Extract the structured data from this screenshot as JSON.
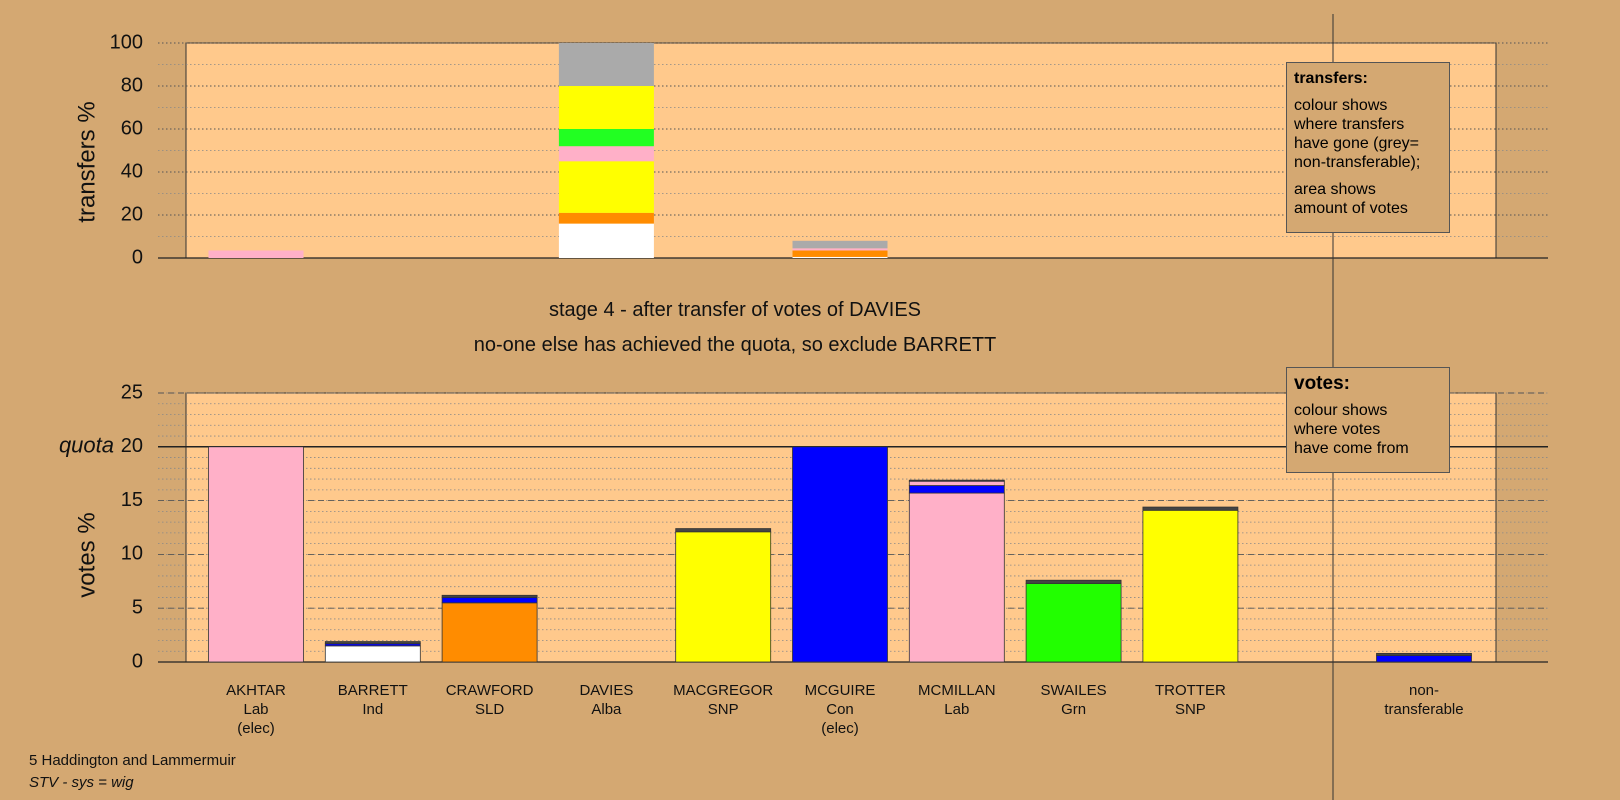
{
  "title": "stage 4 - after transfer of votes of DAVIES",
  "subtitle": "no-one else has achieved the quota, so exclude BARRETT",
  "chart_data": [
    {
      "type": "bar",
      "stacked": true,
      "ylabel": "transfers %",
      "ylim": [
        0,
        100
      ],
      "yticks": [
        0,
        20,
        40,
        60,
        80,
        100
      ],
      "minor_tick_step": 10,
      "grid": true,
      "series": [
        {
          "color": "#ffffff",
          "values": [
            null,
            null,
            null,
            16,
            null,
            0.5,
            null,
            null,
            null,
            null,
            null
          ]
        },
        {
          "color": "#ff8c00",
          "values": [
            null,
            null,
            null,
            5,
            null,
            3,
            null,
            null,
            null,
            null,
            null
          ]
        },
        {
          "color": "#ffff00",
          "values": [
            null,
            null,
            null,
            24,
            null,
            null,
            null,
            null,
            null,
            null,
            null
          ]
        },
        {
          "color": "#ffb0c8",
          "values": [
            3.5,
            null,
            null,
            7,
            null,
            1,
            null,
            null,
            null,
            null,
            null
          ]
        },
        {
          "color": "#22ff22",
          "values": [
            null,
            null,
            null,
            8,
            null,
            null,
            null,
            null,
            null,
            null,
            null
          ]
        },
        {
          "color": "#ffff00",
          "values": [
            null,
            null,
            null,
            20,
            null,
            null,
            null,
            null,
            null,
            null,
            null
          ]
        },
        {
          "color": "#aaaaaa",
          "values": [
            null,
            null,
            null,
            20,
            null,
            3.5,
            null,
            null,
            null,
            null,
            null
          ]
        }
      ]
    },
    {
      "type": "bar",
      "stacked": true,
      "ylabel": "votes %",
      "categories": [
        "AKHTAR",
        "BARRETT",
        "CRAWFORD",
        "DAVIES",
        "MACGREGOR",
        "MCGUIRE",
        "MCMILLAN",
        "SWAILES",
        "TROTTER",
        null,
        "non-transferable"
      ],
      "parties": [
        "Lab",
        "Ind",
        "SLD",
        "Alba",
        "SNP",
        "Con",
        "Lab",
        "Grn",
        "SNP",
        null,
        null
      ],
      "notes": [
        "(elec)",
        null,
        null,
        null,
        null,
        "(elec)",
        null,
        null,
        null,
        null,
        null
      ],
      "ylim": [
        0,
        25
      ],
      "yticks": [
        0,
        5,
        10,
        15,
        20,
        25
      ],
      "minor_tick_step": 1,
      "grid": true,
      "quota": {
        "value": 20,
        "label": "quota"
      },
      "series": [
        {
          "color": "#ffffff",
          "values": [
            null,
            1.5,
            null,
            null,
            null,
            null,
            null,
            null,
            null,
            null,
            null
          ]
        },
        {
          "color": "#ff8c00",
          "values": [
            null,
            null,
            5.5,
            null,
            null,
            null,
            null,
            null,
            null,
            null,
            null
          ]
        },
        {
          "color": "#ffff00",
          "values": [
            null,
            null,
            null,
            null,
            12.1,
            null,
            null,
            null,
            14.1,
            null,
            null
          ]
        },
        {
          "color": "#ffb0c8",
          "values": [
            20,
            null,
            null,
            null,
            null,
            null,
            15.7,
            null,
            null,
            null,
            null
          ]
        },
        {
          "color": "#22ff00",
          "values": [
            null,
            null,
            null,
            null,
            null,
            null,
            null,
            7.3,
            null,
            null,
            null
          ]
        },
        {
          "color": "#0000ff",
          "values": [
            null,
            0.2,
            0.5,
            null,
            null,
            20,
            0.7,
            null,
            null,
            null,
            0.6
          ]
        },
        {
          "color": "#ffb0c8",
          "values": [
            null,
            null,
            null,
            null,
            null,
            null,
            0.4,
            null,
            null,
            null,
            null
          ]
        },
        {
          "color": "#444444",
          "values": [
            null,
            0.2,
            0.2,
            null,
            0.3,
            null,
            0.1,
            0.3,
            0.3,
            null,
            0.2
          ]
        }
      ]
    }
  ],
  "legends": [
    {
      "heading": "transfers:",
      "paragraphs": [
        [
          "colour shows",
          "where transfers",
          "have gone (grey=",
          "non-transferable);"
        ],
        [
          "area shows",
          "amount of votes"
        ]
      ]
    },
    {
      "heading": "votes:",
      "paragraphs": [
        [
          "colour shows",
          "where votes",
          "have come from"
        ]
      ]
    }
  ],
  "footer": {
    "constituency": "5 Haddington and Lammermuir",
    "system": "STV - sys = wig"
  }
}
